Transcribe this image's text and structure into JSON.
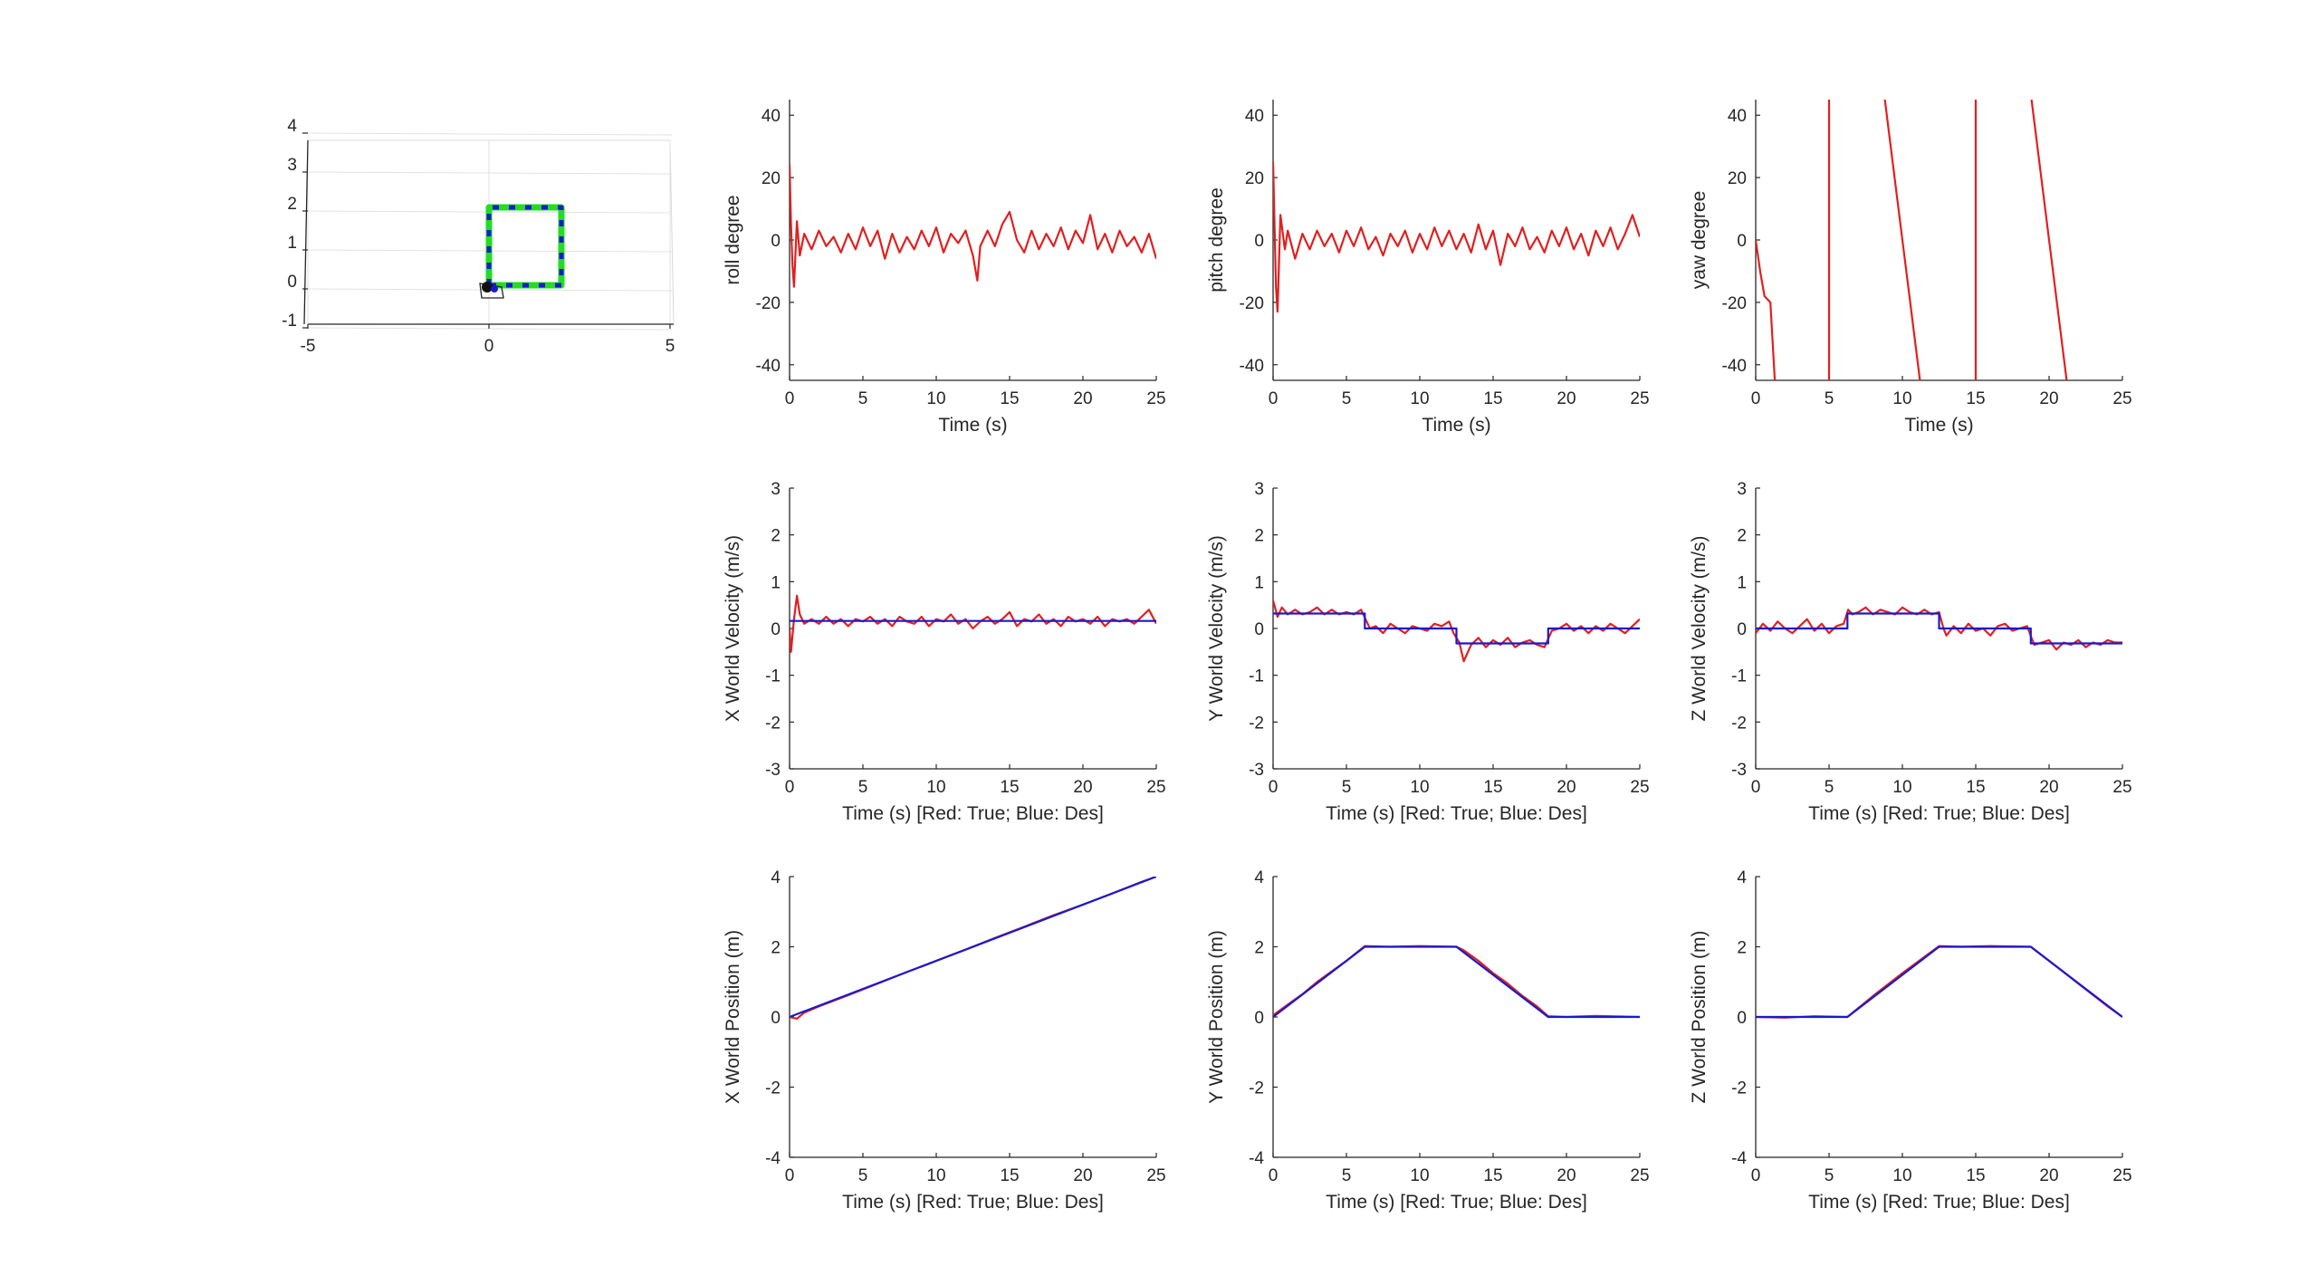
{
  "chart_data": [
    {
      "id": "trajectory3d",
      "type": "line",
      "xlim": [
        -5,
        5
      ],
      "ylim": [
        -1,
        4
      ],
      "xticks": [
        "-5",
        "0",
        "5"
      ],
      "yticks": [
        "-1",
        "0",
        "1",
        "2",
        "3",
        "4"
      ],
      "series": [
        {
          "color": "#22dd22",
          "x": [
            0,
            0,
            2,
            2,
            0
          ],
          "y": [
            0,
            2,
            2,
            0,
            0
          ]
        },
        {
          "color": "#1a1acc",
          "x": [
            0,
            0,
            2,
            2,
            0
          ],
          "y": [
            0,
            2,
            2,
            0,
            0
          ]
        }
      ]
    },
    {
      "id": "roll",
      "type": "line",
      "xlabel": "Time (s)",
      "ylabel": "roll degree",
      "xlim": [
        0,
        25
      ],
      "ylim": [
        -45,
        45
      ],
      "xticks": [
        "0",
        "5",
        "10",
        "15",
        "20",
        "25"
      ],
      "yticks": [
        "-40",
        "-20",
        "0",
        "20",
        "40"
      ],
      "series": [
        {
          "color": "#e02020",
          "x": [
            0,
            0.1,
            0.2,
            0.3,
            0.5,
            0.7,
            1.0,
            1.5,
            2.0,
            2.5,
            3.0,
            3.5,
            4.0,
            4.5,
            5.0,
            5.5,
            6.0,
            6.5,
            7.0,
            7.5,
            8.0,
            8.5,
            9.0,
            9.5,
            10.0,
            10.5,
            11.0,
            11.5,
            12.0,
            12.5,
            12.8,
            13.0,
            13.5,
            14.0,
            14.5,
            15.0,
            15.5,
            16.0,
            16.5,
            17.0,
            17.5,
            18.0,
            18.5,
            19.0,
            19.5,
            20.0,
            20.5,
            21.0,
            21.5,
            22.0,
            22.5,
            23.0,
            23.5,
            24.0,
            24.5,
            25.0
          ],
          "y": [
            24,
            5,
            -8,
            -15,
            6,
            -5,
            2,
            -3,
            3,
            -2,
            1,
            -4,
            2,
            -3,
            4,
            -2,
            3,
            -6,
            2,
            -4,
            1,
            -3,
            3,
            -2,
            4,
            -4,
            2,
            -1,
            3,
            -5,
            -13,
            -2,
            3,
            -2,
            5,
            9,
            0,
            -4,
            3,
            -3,
            2,
            -2,
            4,
            -3,
            3,
            -1,
            8,
            -3,
            2,
            -4,
            3,
            -2,
            1,
            -4,
            2,
            -6
          ]
        }
      ]
    },
    {
      "id": "pitch",
      "type": "line",
      "xlabel": "Time (s)",
      "ylabel": "pitch degree",
      "xlim": [
        0,
        25
      ],
      "ylim": [
        -45,
        45
      ],
      "xticks": [
        "0",
        "5",
        "10",
        "15",
        "20",
        "25"
      ],
      "yticks": [
        "-40",
        "-20",
        "0",
        "20",
        "40"
      ],
      "series": [
        {
          "color": "#e02020",
          "x": [
            0,
            0.1,
            0.2,
            0.3,
            0.5,
            0.8,
            1.0,
            1.5,
            2.0,
            2.5,
            3.0,
            3.5,
            4.0,
            4.5,
            5.0,
            5.5,
            6.0,
            6.5,
            7.0,
            7.5,
            8.0,
            8.5,
            9.0,
            9.5,
            10.0,
            10.5,
            11.0,
            11.5,
            12.0,
            12.5,
            13.0,
            13.5,
            14.0,
            14.5,
            15.0,
            15.5,
            16.0,
            16.5,
            17.0,
            17.5,
            18.0,
            18.5,
            19.0,
            19.5,
            20.0,
            20.5,
            21.0,
            21.5,
            22.0,
            22.5,
            23.0,
            23.5,
            24.0,
            24.5,
            25.0
          ],
          "y": [
            25,
            5,
            -15,
            -23,
            8,
            -3,
            3,
            -6,
            2,
            -3,
            3,
            -2,
            2,
            -4,
            3,
            -2,
            4,
            -3,
            1,
            -5,
            2,
            -2,
            3,
            -4,
            2,
            -3,
            4,
            -2,
            3,
            -3,
            2,
            -4,
            5,
            -3,
            3,
            -8,
            2,
            -2,
            4,
            -3,
            1,
            -4,
            3,
            -2,
            4,
            -3,
            2,
            -5,
            3,
            -2,
            4,
            -3,
            2,
            8,
            1
          ]
        }
      ]
    },
    {
      "id": "yaw",
      "type": "line",
      "xlabel": "Time (s)",
      "ylabel": "yaw degree",
      "xlim": [
        0,
        25
      ],
      "ylim": [
        -45,
        45
      ],
      "xticks": [
        "0",
        "5",
        "10",
        "15",
        "20",
        "25"
      ],
      "yticks": [
        "-40",
        "-20",
        "0",
        "20",
        "40"
      ],
      "series": [
        {
          "color": "#e02020",
          "x": [
            0,
            0.3,
            0.6,
            1.0,
            1.3
          ],
          "y": [
            0,
            -10,
            -18,
            -20,
            -45
          ]
        },
        {
          "color": "#e02020",
          "x": [
            5,
            5
          ],
          "y": [
            -45,
            45
          ]
        },
        {
          "color": "#e02020",
          "x": [
            8.8,
            11.2
          ],
          "y": [
            45,
            -45
          ]
        },
        {
          "color": "#e02020",
          "x": [
            15,
            15
          ],
          "y": [
            -45,
            45
          ]
        },
        {
          "color": "#e02020",
          "x": [
            18.8,
            21.2
          ],
          "y": [
            45,
            -45
          ]
        }
      ]
    },
    {
      "id": "xvel",
      "type": "line",
      "xlabel": "Time (s) [Red: True; Blue: Des]",
      "ylabel": "X World Velocity (m/s)",
      "xlim": [
        0,
        25
      ],
      "ylim": [
        -3,
        3
      ],
      "xticks": [
        "0",
        "5",
        "10",
        "15",
        "20",
        "25"
      ],
      "yticks": [
        "-3",
        "-2",
        "-1",
        "0",
        "1",
        "2",
        "3"
      ],
      "series": [
        {
          "color": "#e02020",
          "x": [
            0,
            0.1,
            0.3,
            0.5,
            0.7,
            1.0,
            1.5,
            2,
            2.5,
            3,
            3.5,
            4,
            4.5,
            5,
            5.5,
            6,
            6.5,
            7,
            7.5,
            8,
            8.5,
            9,
            9.5,
            10,
            10.5,
            11,
            11.5,
            12,
            12.5,
            13,
            13.5,
            14,
            14.5,
            15,
            15.5,
            16,
            16.5,
            17,
            17.5,
            18,
            18.5,
            19,
            19.5,
            20,
            20.5,
            21,
            21.5,
            22,
            22.5,
            23,
            23.5,
            24,
            24.5,
            25
          ],
          "y": [
            0,
            -0.5,
            0.2,
            0.7,
            0.3,
            0.1,
            0.2,
            0.1,
            0.25,
            0.1,
            0.2,
            0.05,
            0.2,
            0.15,
            0.25,
            0.1,
            0.2,
            0.05,
            0.25,
            0.15,
            0.1,
            0.25,
            0.05,
            0.2,
            0.15,
            0.3,
            0.1,
            0.2,
            0.0,
            0.15,
            0.25,
            0.1,
            0.2,
            0.35,
            0.05,
            0.2,
            0.15,
            0.3,
            0.1,
            0.2,
            0.05,
            0.25,
            0.15,
            0.2,
            0.1,
            0.25,
            0.05,
            0.2,
            0.15,
            0.2,
            0.1,
            0.25,
            0.4,
            0.1
          ]
        },
        {
          "color": "#1a1acc",
          "x": [
            0,
            25
          ],
          "y": [
            0.16,
            0.16
          ]
        }
      ]
    },
    {
      "id": "yvel",
      "type": "line",
      "xlabel": "Time (s) [Red: True; Blue: Des]",
      "ylabel": "Y World Velocity (m/s)",
      "xlim": [
        0,
        25
      ],
      "ylim": [
        -3,
        3
      ],
      "xticks": [
        "0",
        "5",
        "10",
        "15",
        "20",
        "25"
      ],
      "yticks": [
        "-3",
        "-2",
        "-1",
        "0",
        "1",
        "2",
        "3"
      ],
      "series": [
        {
          "color": "#e02020",
          "x": [
            0,
            0.3,
            0.6,
            1,
            1.5,
            2,
            2.5,
            3,
            3.5,
            4,
            4.5,
            5,
            5.5,
            6,
            6.3,
            6.6,
            7,
            7.5,
            8,
            8.5,
            9,
            9.5,
            10,
            10.5,
            11,
            11.5,
            12,
            12.3,
            12.7,
            13,
            13.5,
            14,
            14.5,
            15,
            15.5,
            16,
            16.5,
            17,
            17.5,
            18,
            18.5,
            19,
            19.5,
            20,
            20.5,
            21,
            21.5,
            22,
            22.5,
            23,
            23.5,
            24,
            24.5,
            25
          ],
          "y": [
            0.6,
            0.25,
            0.45,
            0.3,
            0.4,
            0.3,
            0.35,
            0.45,
            0.3,
            0.4,
            0.3,
            0.35,
            0.3,
            0.4,
            0.2,
            0.0,
            0.05,
            -0.1,
            0.1,
            0.0,
            -0.1,
            0.05,
            0.0,
            -0.05,
            0.1,
            0.05,
            0.15,
            -0.1,
            -0.3,
            -0.7,
            -0.35,
            -0.2,
            -0.4,
            -0.25,
            -0.35,
            -0.2,
            -0.4,
            -0.3,
            -0.25,
            -0.35,
            -0.4,
            -0.05,
            0.0,
            0.1,
            -0.05,
            0.05,
            -0.1,
            0.05,
            -0.05,
            0.1,
            0.0,
            -0.1,
            0.05,
            0.2
          ]
        },
        {
          "color": "#1a1acc",
          "x": [
            0,
            6.25,
            6.25,
            12.5,
            12.5,
            18.75,
            18.75,
            25
          ],
          "y": [
            0.32,
            0.32,
            0.0,
            0.0,
            -0.32,
            -0.32,
            0.0,
            0.0
          ]
        }
      ]
    },
    {
      "id": "zvel",
      "type": "line",
      "xlabel": "Time (s) [Red: True; Blue: Des]",
      "ylabel": "Z World Velocity (m/s)",
      "xlim": [
        0,
        25
      ],
      "ylim": [
        -3,
        3
      ],
      "xticks": [
        "0",
        "5",
        "10",
        "15",
        "20",
        "25"
      ],
      "yticks": [
        "-3",
        "-2",
        "-1",
        "0",
        "1",
        "2",
        "3"
      ],
      "series": [
        {
          "color": "#e02020",
          "x": [
            0,
            0.5,
            1,
            1.5,
            2,
            2.5,
            3,
            3.5,
            4,
            4.5,
            5,
            5.5,
            6,
            6.3,
            6.6,
            7,
            7.5,
            8,
            8.5,
            9,
            9.5,
            10,
            10.5,
            11,
            11.5,
            12,
            12.5,
            12.8,
            13,
            13.5,
            14,
            14.5,
            15,
            15.5,
            16,
            16.5,
            17,
            17.5,
            18,
            18.5,
            18.8,
            19,
            19.5,
            20,
            20.5,
            21,
            21.5,
            22,
            22.5,
            23,
            23.5,
            24,
            24.5,
            25
          ],
          "y": [
            -0.1,
            0.1,
            -0.05,
            0.15,
            0.0,
            -0.1,
            0.05,
            0.2,
            -0.05,
            0.1,
            -0.1,
            0.05,
            0.1,
            0.4,
            0.3,
            0.35,
            0.45,
            0.3,
            0.4,
            0.35,
            0.3,
            0.45,
            0.35,
            0.3,
            0.4,
            0.3,
            0.35,
            0.0,
            -0.15,
            0.05,
            -0.1,
            0.1,
            -0.05,
            0.0,
            -0.15,
            0.05,
            0.1,
            -0.05,
            0.0,
            0.05,
            -0.2,
            -0.35,
            -0.3,
            -0.25,
            -0.45,
            -0.3,
            -0.35,
            -0.25,
            -0.4,
            -0.3,
            -0.35,
            -0.25,
            -0.3,
            -0.3
          ]
        },
        {
          "color": "#1a1acc",
          "x": [
            0,
            6.25,
            6.25,
            12.5,
            12.5,
            18.75,
            18.75,
            25
          ],
          "y": [
            0.0,
            0.0,
            0.32,
            0.32,
            0.0,
            0.0,
            -0.32,
            -0.32
          ]
        }
      ]
    },
    {
      "id": "xpos",
      "type": "line",
      "xlabel": "Time (s) [Red: True; Blue: Des]",
      "ylabel": "X World Position (m)",
      "xlim": [
        0,
        25
      ],
      "ylim": [
        -4,
        4
      ],
      "xticks": [
        "0",
        "5",
        "10",
        "15",
        "20",
        "25"
      ],
      "yticks": [
        "-4",
        "-2",
        "0",
        "2",
        "4"
      ],
      "series": [
        {
          "color": "#e02020",
          "x": [
            0,
            0.5,
            1,
            2,
            4,
            6,
            8,
            10,
            12,
            14,
            16,
            18,
            20,
            22,
            24,
            25
          ],
          "y": [
            0,
            -0.05,
            0.12,
            0.3,
            0.62,
            0.95,
            1.28,
            1.6,
            1.92,
            2.25,
            2.57,
            2.9,
            3.2,
            3.52,
            3.85,
            4.0
          ]
        },
        {
          "color": "#1a1acc",
          "x": [
            0,
            25
          ],
          "y": [
            0,
            4.0
          ]
        }
      ]
    },
    {
      "id": "ypos",
      "type": "line",
      "xlabel": "Time (s) [Red: True; Blue: Des]",
      "ylabel": "Y World Position (m)",
      "xlim": [
        0,
        25
      ],
      "ylim": [
        -4,
        4
      ],
      "xticks": [
        "0",
        "5",
        "10",
        "15",
        "20",
        "25"
      ],
      "yticks": [
        "-4",
        "-2",
        "0",
        "2",
        "4"
      ],
      "series": [
        {
          "color": "#e02020",
          "x": [
            0,
            1,
            2,
            3,
            4,
            5,
            6.25,
            8,
            10,
            12.5,
            13,
            14,
            15,
            16,
            17,
            18,
            18.75,
            20,
            22,
            25
          ],
          "y": [
            0.05,
            0.35,
            0.65,
            1.0,
            1.3,
            1.6,
            2.02,
            2.0,
            2.02,
            2.0,
            1.9,
            1.6,
            1.25,
            0.95,
            0.6,
            0.3,
            0.02,
            0.0,
            0.03,
            0.0
          ]
        },
        {
          "color": "#1a1acc",
          "x": [
            0,
            6.25,
            12.5,
            18.75,
            25
          ],
          "y": [
            0,
            2.0,
            2.0,
            0,
            0
          ]
        }
      ]
    },
    {
      "id": "zpos",
      "type": "line",
      "xlabel": "Time (s) [Red: True; Blue: Des]",
      "ylabel": "Z World Position (m)",
      "xlim": [
        0,
        25
      ],
      "ylim": [
        -4,
        4
      ],
      "xticks": [
        "0",
        "5",
        "10",
        "15",
        "20",
        "25"
      ],
      "yticks": [
        "-4",
        "-2",
        "0",
        "2",
        "4"
      ],
      "series": [
        {
          "color": "#e02020",
          "x": [
            0,
            2,
            4,
            6.25,
            8,
            10,
            12.5,
            14,
            16,
            18.75,
            20,
            22,
            24,
            25
          ],
          "y": [
            0.0,
            -0.02,
            0.02,
            0.0,
            0.6,
            1.25,
            2.02,
            2.0,
            2.02,
            2.0,
            1.6,
            0.95,
            0.3,
            0.0
          ]
        },
        {
          "color": "#1a1acc",
          "x": [
            0,
            6.25,
            12.5,
            18.75,
            25
          ],
          "y": [
            0,
            0,
            2.0,
            2.0,
            0
          ]
        }
      ]
    }
  ]
}
